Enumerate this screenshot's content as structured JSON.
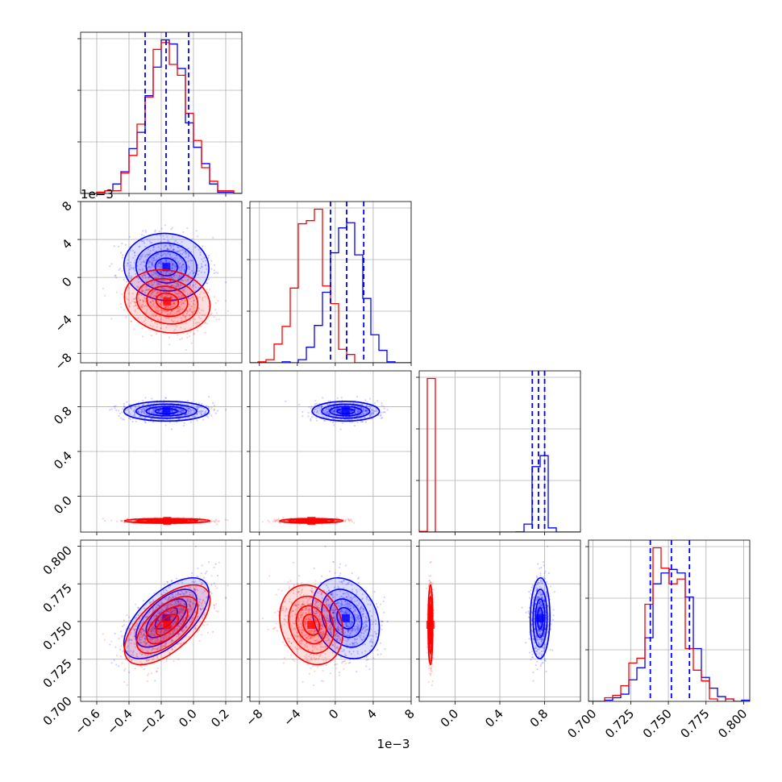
{
  "chart_data": {
    "type": "corner",
    "title": "",
    "series": [
      {
        "name": "",
        "color": "#0000ff",
        "mean": [
          -0.16,
          0.0012,
          0.76,
          0.752
        ],
        "std": [
          0.13,
          0.0017,
          0.04,
          0.013
        ],
        "corr01": -0.1,
        "corr03": 0.62,
        "corr13": -0.22
      },
      {
        "name": "",
        "color": "#ff0000",
        "mean": [
          -0.16,
          -0.0025,
          -0.22,
          0.748
        ],
        "std": [
          0.13,
          0.0016,
          0.01,
          0.013
        ],
        "corr01": -0.2,
        "corr03": 0.62,
        "corr13": -0.1
      }
    ],
    "quantiles": {
      "param1": [
        -0.3,
        -0.17,
        -0.03
      ],
      "param2": [
        -0.0005,
        0.0012,
        0.003
      ],
      "param3": [
        0.69,
        0.745,
        0.8
      ],
      "param4": [
        0.738,
        0.752,
        0.764
      ]
    },
    "axes": {
      "param1": {
        "range": [
          -0.7,
          0.3
        ],
        "ticks": [
          "−0.6",
          "−0.4",
          "−0.2",
          "0.0",
          "0.2"
        ],
        "tick_values": [
          -0.6,
          -0.4,
          -0.2,
          0.0,
          0.2
        ]
      },
      "param2": {
        "range": [
          -0.009,
          0.008
        ],
        "ticks": [
          "−8",
          "−4",
          "0",
          "4",
          "8"
        ],
        "tick_values": [
          -0.008,
          -0.004,
          0,
          0.004,
          0.008
        ],
        "offset": "1e−3"
      },
      "param3": {
        "range": [
          -0.32,
          1.12
        ],
        "ticks": [
          "0.0",
          "0.4",
          "0.8"
        ],
        "tick_values": [
          0.0,
          0.4,
          0.8
        ]
      },
      "param4": {
        "range": [
          0.697,
          0.804
        ],
        "ticks": [
          "0.700",
          "0.725",
          "0.750",
          "0.775",
          "0.800"
        ],
        "tick_values": [
          0.7,
          0.725,
          0.75,
          0.775,
          0.8
        ]
      }
    },
    "grid": true
  }
}
